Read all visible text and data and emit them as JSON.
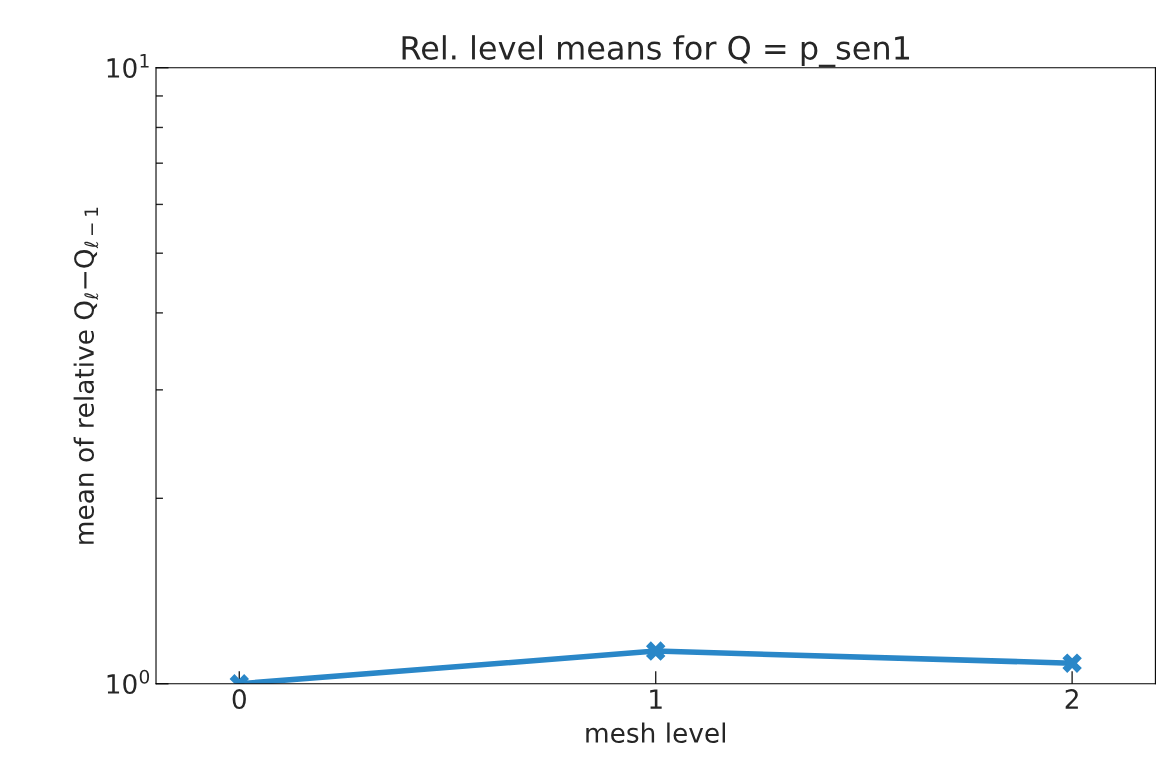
{
  "chart_data": {
    "type": "line",
    "title": "Rel. level means for Q = p_sen1",
    "xlabel": "mesh level",
    "ylabel": "mean of relative Q$_{ℓ}$−Q$_{ℓ−1}$",
    "x": [
      0,
      1,
      2
    ],
    "series": [
      {
        "color": "#2a87c8",
        "values": [
          1.0,
          1.13,
          1.08
        ]
      }
    ],
    "xlim": [
      -0.2,
      2.2
    ],
    "xticks": [
      0,
      1,
      2
    ],
    "ylim": [
      1,
      10
    ],
    "yticks": [
      {
        "value": 1,
        "label": "10$^{0}$"
      },
      {
        "value": 10,
        "label": "10$^{1}$"
      }
    ],
    "log": "y",
    "grid": false,
    "legend": false,
    "marker": "cross",
    "line_style": "solid"
  }
}
